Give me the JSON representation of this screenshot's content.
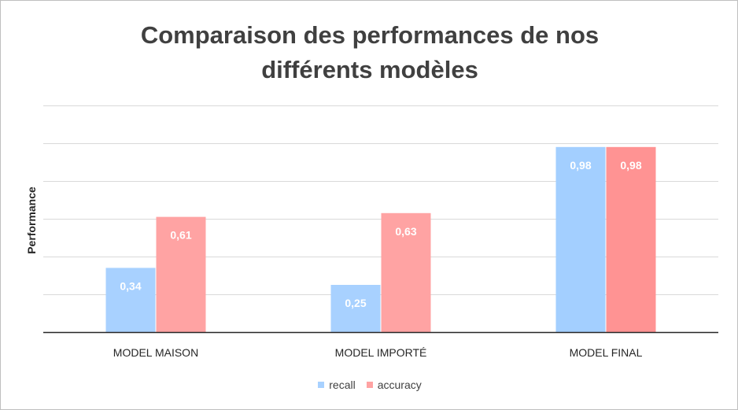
{
  "chart_data": {
    "type": "bar",
    "title_lines": [
      "Comparaison des performances de nos",
      "différents modèles"
    ],
    "xlabel": "",
    "ylabel": "Performance",
    "categories": [
      "MODEL MAISON",
      "MODEL IMPORTÉ",
      "MODEL FINAL"
    ],
    "series": [
      {
        "name": "recall",
        "values": [
          0.34,
          0.25,
          0.98
        ],
        "labels": [
          "0,34",
          "0,25",
          "0,98"
        ],
        "color": "#a8d1ff"
      },
      {
        "name": "accuracy",
        "values": [
          0.61,
          0.63,
          0.98
        ],
        "labels": [
          "0,61",
          "0,63",
          "0,98"
        ],
        "color": "#ffa3a3"
      }
    ],
    "ylim": [
      0,
      1.2
    ],
    "gridlines": [
      0,
      0.2,
      0.4,
      0.6,
      0.8,
      1.0,
      1.2
    ],
    "grid": true,
    "legend_position": "bottom",
    "colors": {
      "grid": "#d9d9d9",
      "axis": "#262626",
      "final_recall": "#a3cfff",
      "final_accuracy": "#ff9393"
    }
  }
}
